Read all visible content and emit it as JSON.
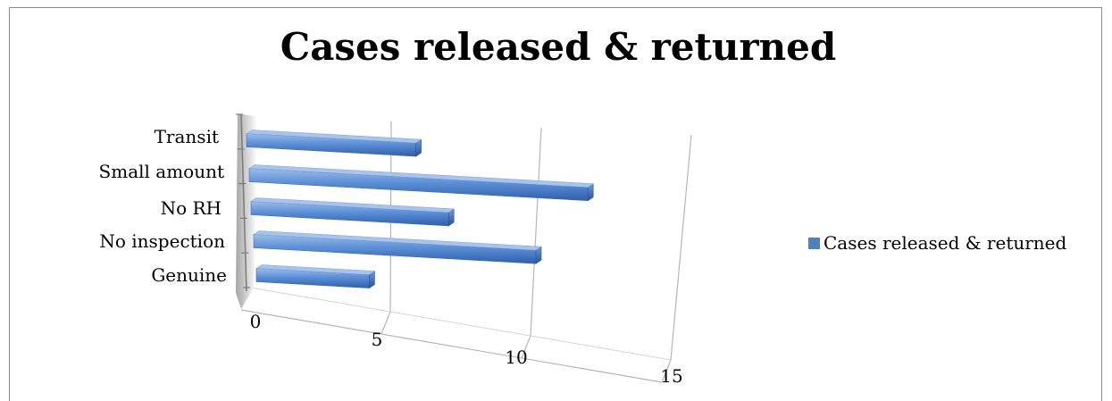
{
  "chart_data": {
    "type": "bar",
    "orientation": "horizontal",
    "title": "Cases released & returned",
    "categories": [
      "Genuine",
      "No inspection",
      "No RH",
      "Small amount",
      "Transit"
    ],
    "series": [
      {
        "name": "Cases released & returned",
        "values": [
          4,
          10,
          7,
          12,
          6
        ],
        "color": "#4f81bd"
      }
    ],
    "xlim": [
      0,
      15
    ],
    "xticks": [
      "0",
      "5",
      "10",
      "15"
    ],
    "grid": true,
    "legend": "right",
    "style": "3d-perspective"
  }
}
